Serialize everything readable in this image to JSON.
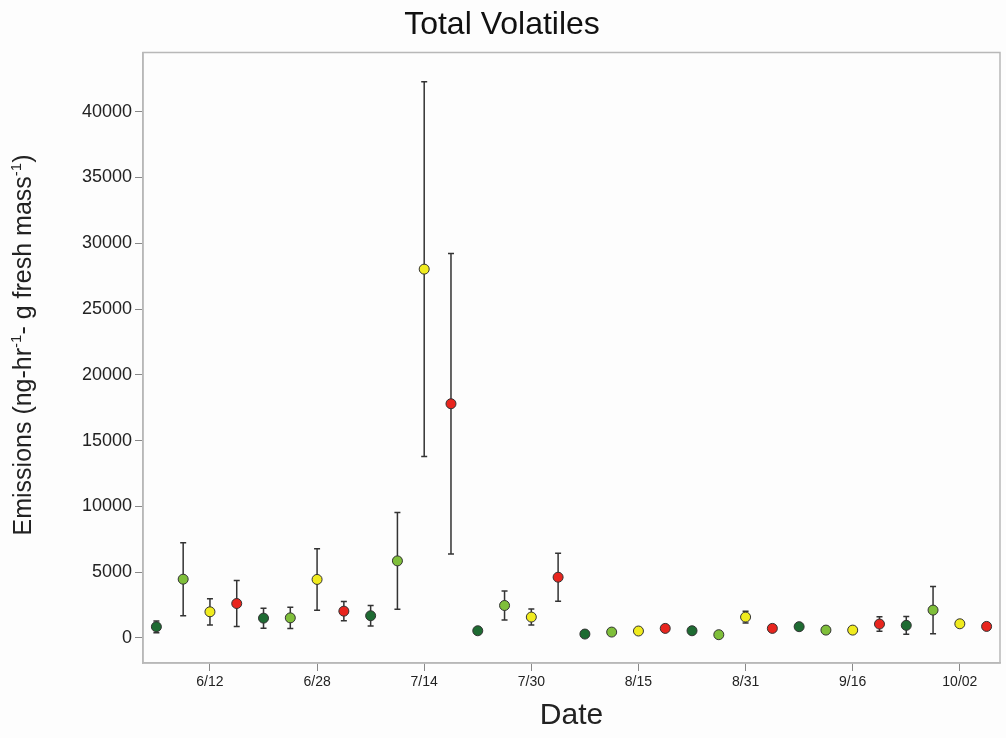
{
  "chart_data": {
    "type": "scatter",
    "title": "Total Volatiles",
    "xlabel": "Date",
    "ylabel": "Emissions (ng-hr$^{-1}$- g fresh mass$^{-1}$)",
    "x": [
      "--06-04",
      "--06-08",
      "--06-12",
      "--06-16",
      "--06-20",
      "--06-24",
      "--06-28",
      "--07-02",
      "--07-06",
      "--07-10",
      "--07-14",
      "--07-18",
      "--07-22",
      "--07-26",
      "--07-30",
      "--08-03",
      "--08-07",
      "--08-11",
      "--08-15",
      "--08-19",
      "--08-23",
      "--08-27",
      "--08-31",
      "--09-04",
      "--09-08",
      "--09-12",
      "--09-16",
      "--09-20",
      "--09-24",
      "--09-28",
      "--10-02",
      "--10-06"
    ],
    "values": [
      850,
      4470,
      1990,
      2620,
      1510,
      1530,
      4450,
      2040,
      1690,
      5860,
      28030,
      17800,
      550,
      2470,
      1590,
      4620,
      300,
      450,
      530,
      730,
      550,
      250,
      1590,
      730,
      860,
      600,
      600,
      1060,
      960,
      2120,
      1080,
      880
    ],
    "errors": [
      450,
      2770,
      1000,
      1740,
      760,
      800,
      2340,
      730,
      780,
      3680,
      14240,
      11410,
      null,
      1110,
      610,
      1820,
      null,
      null,
      null,
      null,
      null,
      null,
      450,
      null,
      null,
      null,
      null,
      550,
      680,
      1790,
      null,
      null
    ],
    "colors": [
      "#1e6b32",
      "#7fbf3a",
      "#f0eb1e",
      "#e8251e",
      "#1e6b32",
      "#7fbf3a",
      "#f0eb1e",
      "#e8251e",
      "#1e6b32",
      "#7fbf3a",
      "#f0eb1e",
      "#e8251e",
      "#1e6b32",
      "#7fbf3a",
      "#f0eb1e",
      "#e8251e",
      "#1e6b32",
      "#7fbf3a",
      "#f0eb1e",
      "#e8251e",
      "#1e6b32",
      "#7fbf3a",
      "#f0eb1e",
      "#e8251e",
      "#1e6b32",
      "#7fbf3a",
      "#f0eb1e",
      "#e8251e",
      "#1e6b32",
      "#7fbf3a",
      "#f0eb1e",
      "#e8251e"
    ],
    "marker": "circle",
    "xlim": [
      "--06-02",
      "--10-08"
    ],
    "xticks": [
      {
        "value": "--06-12",
        "label": "6/12"
      },
      {
        "value": "--06-28",
        "label": "6/28"
      },
      {
        "value": "--07-14",
        "label": "7/14"
      },
      {
        "value": "--07-30",
        "label": "7/30"
      },
      {
        "value": "--08-15",
        "label": "8/15"
      },
      {
        "value": "--08-31",
        "label": "8/31"
      },
      {
        "value": "--09-16",
        "label": "9/16"
      },
      {
        "value": "--10-02",
        "label": "10/02"
      }
    ],
    "ylim": [
      -1900,
      44500
    ],
    "yticks": [
      0,
      5000,
      10000,
      15000,
      20000,
      25000,
      30000,
      35000,
      40000
    ]
  }
}
